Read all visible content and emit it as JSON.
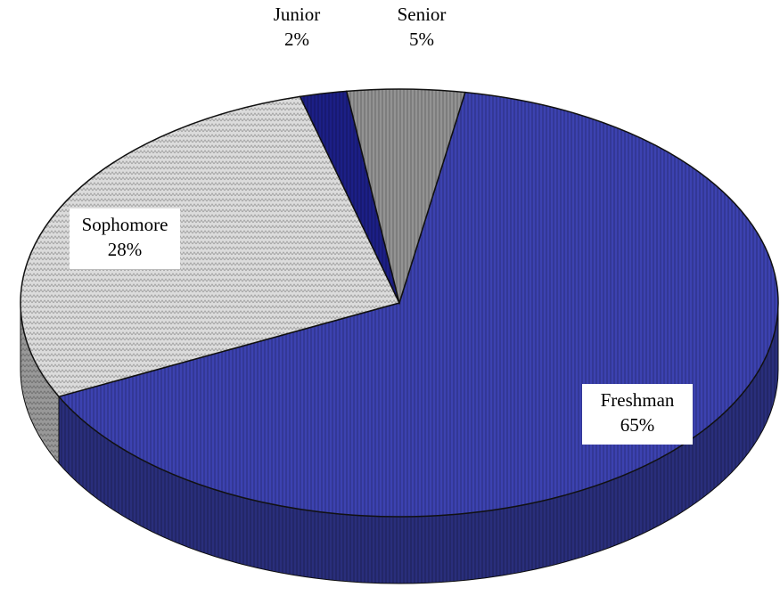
{
  "chart_data": {
    "type": "pie",
    "categories": [
      "Freshman",
      "Sophomore",
      "Junior",
      "Senior"
    ],
    "values": [
      65,
      28,
      2,
      5
    ],
    "value_labels": [
      "65%",
      "28%",
      "2%",
      "5%"
    ],
    "colors": [
      "#3c42b0",
      "#dcdcdc",
      "#1c1f86",
      "#939393"
    ]
  }
}
